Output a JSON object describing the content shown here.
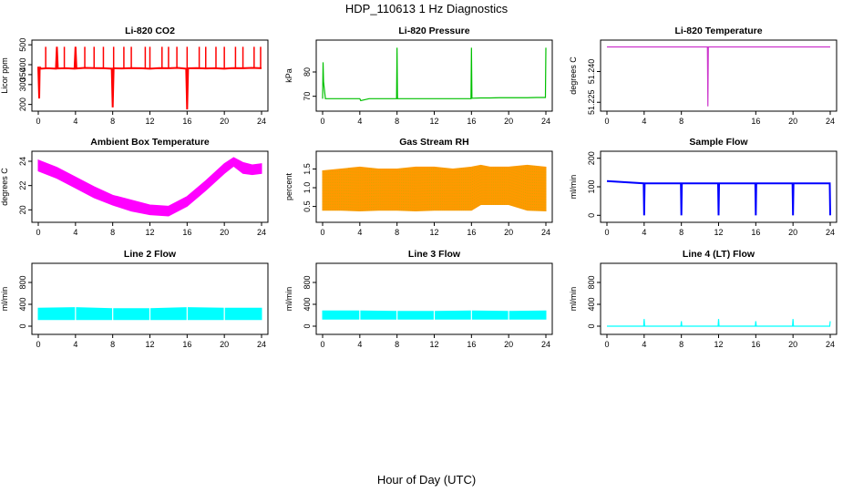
{
  "figure": {
    "title": "HDP_110613  1 Hz Diagnostics",
    "xlabel": "Hour of Day (UTC)"
  },
  "chart_data": [
    {
      "type": "line",
      "title": "Li-820 CO2",
      "ylabel": "Licor ppm",
      "color": "#ff0000",
      "xlim": [
        0,
        24
      ],
      "ylim": [
        180,
        510
      ],
      "xticks": [
        0,
        4,
        8,
        12,
        16,
        20,
        24
      ],
      "yticks": [
        "200",
        "300",
        "350",
        "400",
        "500"
      ],
      "ytick_values": [
        200,
        300,
        350,
        400,
        500
      ],
      "series": [
        {
          "x": [
            0,
            0.1,
            0.15,
            0.2,
            0.3,
            1,
            1.9,
            2.0,
            2.1,
            3,
            3.9,
            4.0,
            4.1,
            5,
            6,
            7,
            7.9,
            8.0,
            8.1,
            9,
            10,
            11,
            12,
            13,
            14,
            15,
            15.9,
            16.0,
            16.1,
            17,
            18,
            19,
            20,
            21,
            22,
            23,
            24
          ],
          "y": [
            390,
            230,
            380,
            385,
            380,
            382,
            380,
            490,
            381,
            382,
            380,
            490,
            381,
            384,
            383,
            382,
            380,
            185,
            382,
            381,
            383,
            382,
            380,
            383,
            382,
            384,
            380,
            175,
            382,
            383,
            381,
            382,
            380,
            383,
            382,
            384,
            382
          ]
        }
      ],
      "spikes": [
        0.8,
        2.0,
        2.8,
        4.0,
        5.0,
        6.0,
        7.0,
        8.1,
        9.2,
        10.0,
        11.5,
        12.0,
        13.3,
        14.0,
        14.9,
        16.0,
        17.3,
        18.0,
        19.1,
        20.0,
        21.2,
        22.0,
        23.2,
        23.9
      ],
      "spike_top": 490
    },
    {
      "type": "line",
      "title": "Li-820 Pressure",
      "ylabel": "kPa",
      "color": "#00c000",
      "xlim": [
        0,
        24
      ],
      "ylim": [
        65,
        92
      ],
      "xticks": [
        0,
        4,
        8,
        12,
        16,
        20,
        24
      ],
      "yticks": [
        "70",
        "80"
      ],
      "ytick_values": [
        70,
        80
      ],
      "series": [
        {
          "x": [
            0,
            0.05,
            0.1,
            0.3,
            1,
            2,
            3,
            4,
            4.1,
            5,
            6,
            7,
            7.95,
            8.0,
            8.05,
            9,
            10,
            11,
            12,
            13,
            14,
            15,
            15.95,
            16.0,
            16.05,
            17,
            18,
            19,
            20,
            21,
            22,
            23,
            23.95,
            24.0
          ],
          "y": [
            69,
            84,
            76,
            69,
            69,
            69,
            69,
            69,
            68.2,
            69,
            69,
            69,
            69,
            90,
            69,
            69,
            69,
            69,
            69,
            69,
            69,
            69,
            69,
            90,
            69.2,
            69.3,
            69.3,
            69.4,
            69.4,
            69.4,
            69.4,
            69.5,
            69.5,
            90
          ]
        }
      ]
    },
    {
      "type": "line",
      "title": "Li-820 Temperature",
      "ylabel": "degrees C",
      "color": "#cc33cc",
      "xlim": [
        0,
        24
      ],
      "ylim": [
        51.222,
        51.254
      ],
      "xticks": [
        0,
        4,
        8,
        16,
        20,
        24
      ],
      "yticks": [
        "51.225",
        "51.240"
      ],
      "ytick_values": [
        51.225,
        51.24
      ],
      "series": [
        {
          "x": [
            0,
            10.8,
            10.85,
            10.9,
            24
          ],
          "y": [
            51.252,
            51.252,
            51.223,
            51.252,
            51.252
          ]
        }
      ]
    },
    {
      "type": "area",
      "title": "Ambient Box Temperature",
      "ylabel": "degrees C",
      "color": "#ff00ff",
      "xlim": [
        0,
        24
      ],
      "ylim": [
        19.2,
        24.6
      ],
      "xticks": [
        0,
        4,
        8,
        12,
        16,
        20,
        24
      ],
      "yticks": [
        "20",
        "22",
        "24"
      ],
      "ytick_values": [
        20,
        22,
        24
      ],
      "series": [
        {
          "x": [
            0,
            2,
            4,
            6,
            8,
            10,
            12,
            14,
            16,
            18,
            20,
            21,
            22,
            23,
            24
          ],
          "y_low": [
            23.2,
            22.6,
            21.8,
            21.0,
            20.4,
            19.9,
            19.6,
            19.5,
            20.3,
            21.6,
            23.0,
            23.6,
            23.0,
            22.9,
            23.0
          ],
          "y_high": [
            24.1,
            23.5,
            22.7,
            21.9,
            21.2,
            20.8,
            20.4,
            20.3,
            21.1,
            22.4,
            23.8,
            24.3,
            23.9,
            23.7,
            23.8
          ]
        }
      ]
    },
    {
      "type": "area",
      "title": "Gas Stream RH",
      "ylabel": "percent",
      "color": "#ff9900",
      "color2": "#ccaa00",
      "xlim": [
        0,
        24
      ],
      "ylim": [
        0.15,
        1.9
      ],
      "xticks": [
        0,
        4,
        8,
        12,
        16,
        20,
        24
      ],
      "yticks": [
        "0.5",
        "1.0",
        "1.5"
      ],
      "ytick_values": [
        0.5,
        1.0,
        1.5
      ],
      "series": [
        {
          "x": [
            0,
            2,
            4,
            6,
            8,
            10,
            12,
            14,
            16,
            17,
            18,
            20,
            22,
            24
          ],
          "y_low": [
            0.4,
            0.4,
            0.38,
            0.4,
            0.4,
            0.38,
            0.4,
            0.4,
            0.4,
            0.55,
            0.55,
            0.55,
            0.4,
            0.38
          ],
          "y_high": [
            1.45,
            1.5,
            1.55,
            1.5,
            1.5,
            1.55,
            1.55,
            1.5,
            1.55,
            1.6,
            1.55,
            1.55,
            1.6,
            1.55
          ]
        }
      ]
    },
    {
      "type": "line",
      "title": "Sample Flow",
      "ylabel": "ml/min",
      "color": "#0000ff",
      "xlim": [
        0,
        24
      ],
      "ylim": [
        -15,
        215
      ],
      "xticks": [
        0,
        4,
        8,
        12,
        16,
        20,
        24
      ],
      "yticks": [
        "0",
        "100",
        "200"
      ],
      "ytick_values": [
        0,
        100,
        200
      ],
      "series": [
        {
          "x": [
            0,
            3.95,
            4.0,
            4.05,
            7.95,
            8.0,
            8.05,
            11.95,
            12.0,
            12.05,
            15.95,
            16.0,
            16.05,
            19.95,
            20.0,
            20.05,
            23.95,
            24.0
          ],
          "y": [
            120,
            112,
            0,
            112,
            112,
            0,
            112,
            112,
            0,
            112,
            112,
            0,
            112,
            112,
            0,
            112,
            112,
            0
          ]
        }
      ]
    },
    {
      "type": "area",
      "title": "Line 2 Flow",
      "ylabel": "ml/min",
      "color": "#00ffff",
      "xlim": [
        0,
        24
      ],
      "ylim": [
        -100,
        1100
      ],
      "xticks": [
        0,
        4,
        8,
        12,
        16,
        20,
        24
      ],
      "yticks": [
        "0",
        "400",
        "800"
      ],
      "ytick_values": [
        0,
        400,
        800
      ],
      "series": [
        {
          "x": [
            0,
            4,
            8,
            12,
            16,
            20,
            24
          ],
          "y_low": [
            120,
            120,
            120,
            120,
            120,
            120,
            120
          ],
          "y_high": [
            330,
            340,
            320,
            320,
            340,
            330,
            330
          ]
        }
      ],
      "gaps": [
        4,
        8,
        12,
        16,
        20
      ]
    },
    {
      "type": "area",
      "title": "Line 3 Flow",
      "ylabel": "ml/min",
      "color": "#00ffff",
      "xlim": [
        0,
        24
      ],
      "ylim": [
        -100,
        1100
      ],
      "xticks": [
        0,
        4,
        8,
        12,
        16,
        20,
        24
      ],
      "yticks": [
        "0",
        "400",
        "800"
      ],
      "ytick_values": [
        0,
        400,
        800
      ],
      "series": [
        {
          "x": [
            0,
            4,
            8,
            12,
            16,
            20,
            24
          ],
          "y_low": [
            130,
            130,
            130,
            130,
            130,
            130,
            130
          ],
          "y_high": [
            280,
            280,
            270,
            270,
            280,
            270,
            280
          ]
        }
      ],
      "gaps": [
        4,
        8,
        12,
        16,
        20
      ]
    },
    {
      "type": "line",
      "title": "Line 4 (LT) Flow",
      "ylabel": "ml/min",
      "color": "#00ffff",
      "xlim": [
        0,
        24
      ],
      "ylim": [
        -100,
        1100
      ],
      "xticks": [
        0,
        4,
        8,
        12,
        16,
        20,
        24
      ],
      "yticks": [
        "0",
        "400",
        "800"
      ],
      "ytick_values": [
        0,
        400,
        800
      ],
      "series": [
        {
          "x": [
            0,
            3.95,
            4.0,
            4.05,
            7.95,
            8.0,
            8.05,
            11.95,
            12.0,
            12.05,
            15.95,
            16.0,
            16.05,
            19.95,
            20.0,
            20.05,
            23.95,
            24.0
          ],
          "y": [
            0,
            0,
            130,
            0,
            0,
            90,
            0,
            0,
            130,
            0,
            0,
            90,
            0,
            0,
            130,
            0,
            0,
            90
          ]
        }
      ]
    }
  ]
}
